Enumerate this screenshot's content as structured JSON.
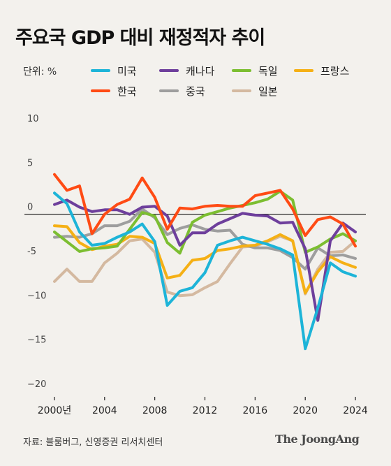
{
  "header": {
    "title": "주요국 GDP 대비 재정적자 추이",
    "unit": "단위: %"
  },
  "footer": {
    "source": "자료: 블룸버그, 신영증권 리서치센터",
    "logo": "The JoongAng"
  },
  "chart_data": {
    "type": "line",
    "title": "주요국 GDP 대비 재정적자 추이",
    "ylabel": "",
    "xlabel": "",
    "ylim": [
      -20,
      10
    ],
    "xlim": [
      1999,
      2025
    ],
    "grid": false,
    "legend_position": "top",
    "yticks": [
      {
        "value": 10,
        "label": "10"
      },
      {
        "value": 5,
        "label": "5"
      },
      {
        "value": 0,
        "label": "0"
      },
      {
        "value": -5,
        "label": "-5"
      },
      {
        "value": -10,
        "label": "−10"
      },
      {
        "value": -15,
        "label": "−15"
      },
      {
        "value": -20,
        "label": "−20"
      }
    ],
    "xticks": [
      {
        "value": 2000,
        "label": "2000년"
      },
      {
        "value": 2004,
        "label": "2004"
      },
      {
        "value": 2008,
        "label": "2008"
      },
      {
        "value": 2012,
        "label": "2012"
      },
      {
        "value": 2016,
        "label": "2016"
      },
      {
        "value": 2020,
        "label": "2020"
      },
      {
        "value": 2024,
        "label": "2024"
      }
    ],
    "x": [
      2000,
      2001,
      2002,
      2003,
      2004,
      2005,
      2006,
      2007,
      2008,
      2009,
      2010,
      2011,
      2012,
      2013,
      2014,
      2015,
      2016,
      2017,
      2018,
      2019,
      2020,
      2021,
      2022,
      2023,
      2024
    ],
    "series": [
      {
        "name": "미국",
        "color": "#1db4d8",
        "values": [
          2.4,
          1.2,
          -2.0,
          -3.5,
          -3.3,
          -2.6,
          -2.0,
          -1.1,
          -3.1,
          -10.3,
          -8.7,
          -8.3,
          -6.6,
          -3.5,
          -3.0,
          -2.6,
          -3.0,
          -3.4,
          -3.9,
          -4.6,
          -15.2,
          -10.6,
          -5.5,
          -6.5,
          -7.0
        ]
      },
      {
        "name": "캐나다",
        "color": "#6e3f9c",
        "values": [
          1.1,
          1.6,
          0.8,
          0.3,
          0.5,
          0.5,
          0.0,
          0.8,
          0.9,
          -0.2,
          -3.5,
          -2.1,
          -2.1,
          -1.1,
          -0.5,
          0.1,
          -0.1,
          -0.2,
          -1.0,
          -0.9,
          -3.9,
          -12.0,
          -3.0,
          -1.0,
          -2.0
        ]
      },
      {
        "name": "독일",
        "color": "#7cbe31",
        "values": [
          -2.0,
          -3.1,
          -4.2,
          -3.9,
          -3.8,
          -3.6,
          -1.7,
          0.2,
          -0.2,
          -3.2,
          -4.4,
          -0.9,
          -0.1,
          0.3,
          0.7,
          1.0,
          1.3,
          1.7,
          2.6,
          1.6,
          -4.3,
          -3.7,
          -2.8,
          -2.2,
          -3.0
        ]
      },
      {
        "name": "프랑스",
        "color": "#f5b015",
        "values": [
          -1.3,
          -1.4,
          -3.2,
          -4.0,
          -3.6,
          -3.4,
          -2.5,
          -2.6,
          -3.3,
          -7.2,
          -6.9,
          -5.2,
          -5.0,
          -4.1,
          -3.9,
          -3.6,
          -3.5,
          -3.0,
          -2.3,
          -3.0,
          -8.9,
          -6.5,
          -4.8,
          -5.5,
          -6.0
        ]
      },
      {
        "name": "한국",
        "color": "#ff4b14",
        "values": [
          4.5,
          2.7,
          3.2,
          -2.2,
          0.0,
          1.1,
          1.7,
          4.1,
          1.9,
          -1.7,
          0.7,
          0.6,
          0.9,
          1.0,
          0.9,
          0.9,
          2.1,
          2.4,
          2.7,
          0.6,
          -2.4,
          -0.6,
          -0.3,
          -1.1,
          -3.6
        ]
      },
      {
        "name": "중국",
        "color": "#9e9e9e",
        "values": [
          -2.6,
          -2.5,
          -2.6,
          -2.2,
          -1.3,
          -1.3,
          -0.8,
          0.6,
          -0.4,
          -2.3,
          -1.6,
          -1.2,
          -1.7,
          -1.9,
          -1.8,
          -3.4,
          -3.8,
          -3.8,
          -4.1,
          -4.9,
          -6.2,
          -3.8,
          -4.7,
          -4.6,
          -5.0
        ]
      },
      {
        "name": "일본",
        "color": "#d4b9a0",
        "values": [
          -7.6,
          -6.2,
          -7.6,
          -7.6,
          -5.5,
          -4.4,
          -3.0,
          -2.8,
          -4.3,
          -8.8,
          -9.2,
          -9.1,
          -8.3,
          -7.6,
          -5.6,
          -3.7,
          -3.6,
          -3.1,
          -2.5,
          -3.0,
          -9.0,
          -6.2,
          -4.3,
          -4.2,
          -3.0
        ]
      }
    ]
  }
}
